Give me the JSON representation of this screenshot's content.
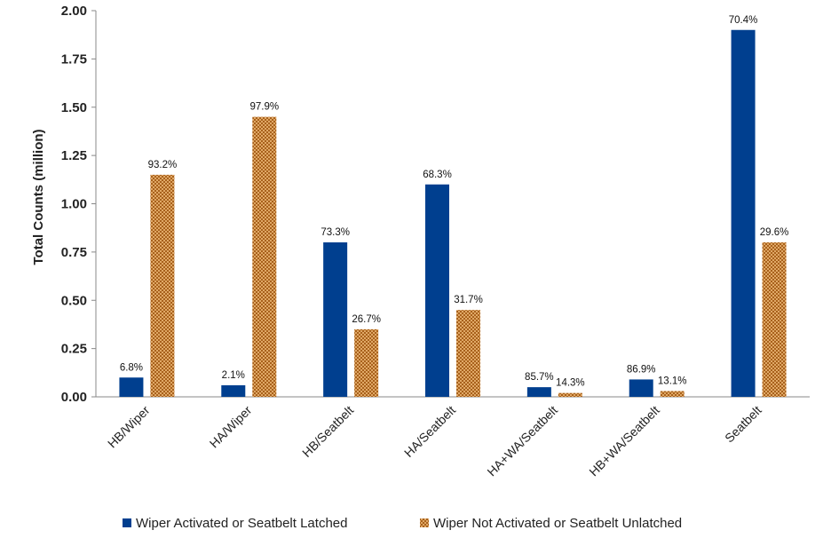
{
  "chart_data": {
    "type": "bar",
    "ylabel": "Total Counts (million)",
    "ylim": [
      0,
      2.0
    ],
    "yticks": [
      "0.00",
      "0.25",
      "0.50",
      "0.75",
      "1.00",
      "1.25",
      "1.50",
      "1.75",
      "2.00"
    ],
    "ytick_values": [
      0,
      0.25,
      0.5,
      0.75,
      1.0,
      1.25,
      1.5,
      1.75,
      2.0
    ],
    "grid": false,
    "legend_position": "bottom",
    "categories": [
      "HB/Wiper",
      "HA/Wiper",
      "HB/Seatbelt",
      "HA/Seatbelt",
      "HA+WA/Seatbelt",
      "HB+WA/Seatbelt",
      "Seatbelt"
    ],
    "series": [
      {
        "name": "Wiper Activated or Seatbelt Latched",
        "color": "#003f8f",
        "values": [
          0.1,
          0.06,
          0.8,
          1.1,
          0.05,
          0.09,
          1.9
        ],
        "labels": [
          "6.8%",
          "2.1%",
          "73.3%",
          "68.3%",
          "85.7%",
          "86.9%",
          "70.4%"
        ]
      },
      {
        "name": "Wiper Not Activated or Seatbelt Unlatched",
        "color": "#c47d2e",
        "pattern": "checkered",
        "values": [
          1.15,
          1.45,
          0.35,
          0.45,
          0.02,
          0.03,
          0.8
        ],
        "labels": [
          "93.2%",
          "97.9%",
          "26.7%",
          "31.7%",
          "14.3%",
          "13.1%",
          "29.6%"
        ]
      }
    ]
  }
}
